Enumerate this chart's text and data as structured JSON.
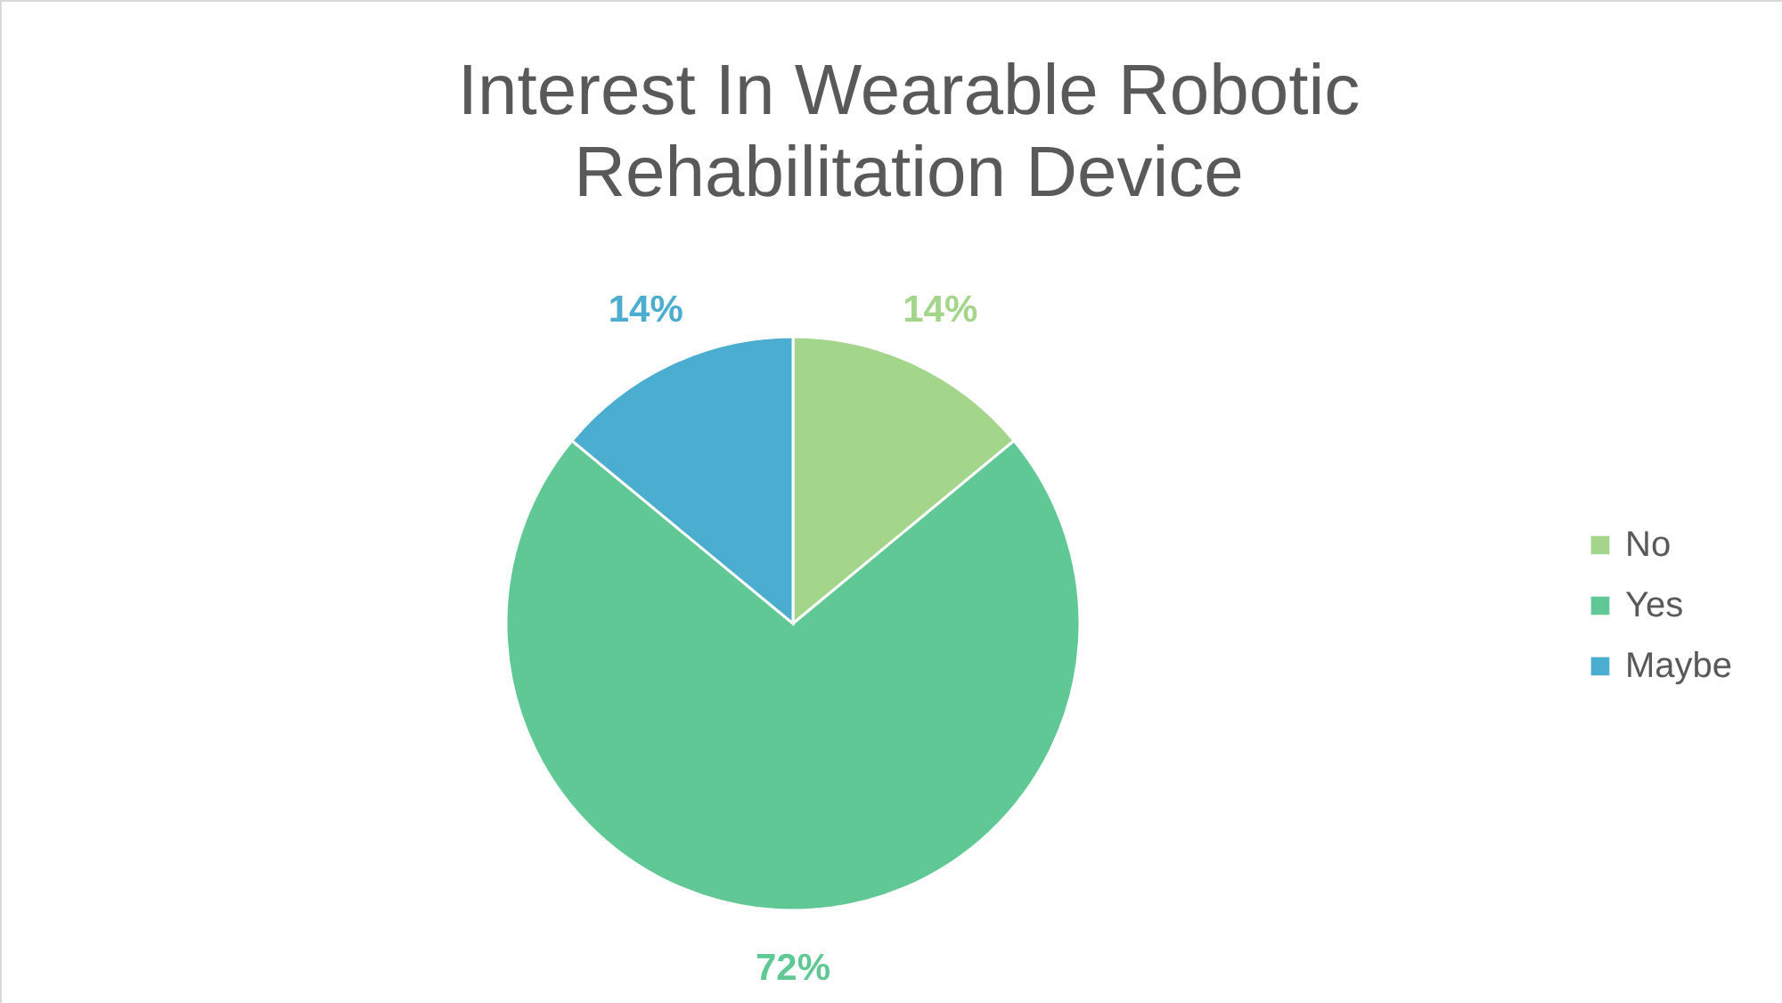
{
  "chart_data": {
    "type": "pie",
    "title": "Interest In Wearable Robotic Rehabilitation Device",
    "categories": [
      "No",
      "Yes",
      "Maybe"
    ],
    "values": [
      14,
      72,
      14
    ],
    "colors": [
      "#a3d68a",
      "#5fc895",
      "#4badcf"
    ],
    "value_labels": [
      "14%",
      "72%",
      "14%"
    ],
    "legend": "right"
  }
}
